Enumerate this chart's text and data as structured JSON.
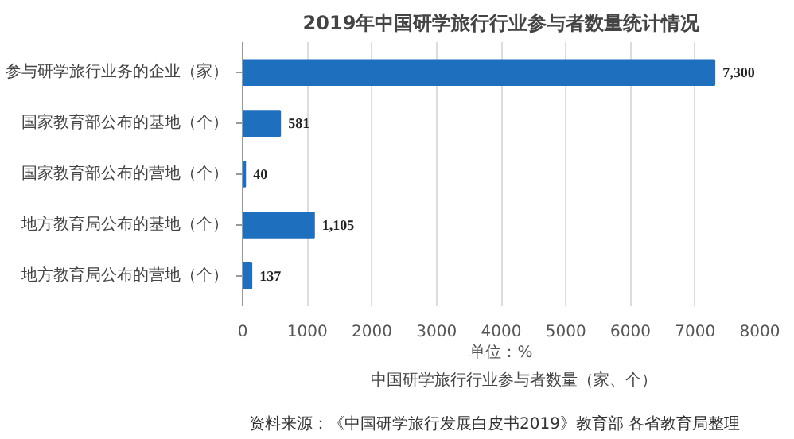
{
  "chart_data": {
    "type": "bar",
    "orientation": "horizontal",
    "title": "2019年中国研学旅行行业参与者数量统计情况",
    "categories": [
      "参与研学旅行业务的企业（家）",
      "国家教育部公布的基地（个）",
      "国家教育部公布的营地（个）",
      "地方教育局公布的基地（个）",
      "地方教育局公布的营地（个）"
    ],
    "series": [
      {
        "name": "中国研学旅行行业参与者数量（家、个）",
        "color": "#1f6fbf",
        "values": [
          7300,
          581,
          40,
          1105,
          137
        ],
        "value_labels": [
          "7,300",
          "581",
          "40",
          "1,105",
          "137"
        ]
      }
    ],
    "xlim": [
      0,
      8000
    ],
    "xticks": [
      0,
      1000,
      2000,
      3000,
      4000,
      5000,
      6000,
      7000,
      8000
    ],
    "xlabel": "单位：%",
    "grid": "x",
    "legend": "bottom",
    "annotations": [
      "资料来源：《中国研学旅行发展白皮书2019》教育部 各省教育局整理"
    ]
  }
}
